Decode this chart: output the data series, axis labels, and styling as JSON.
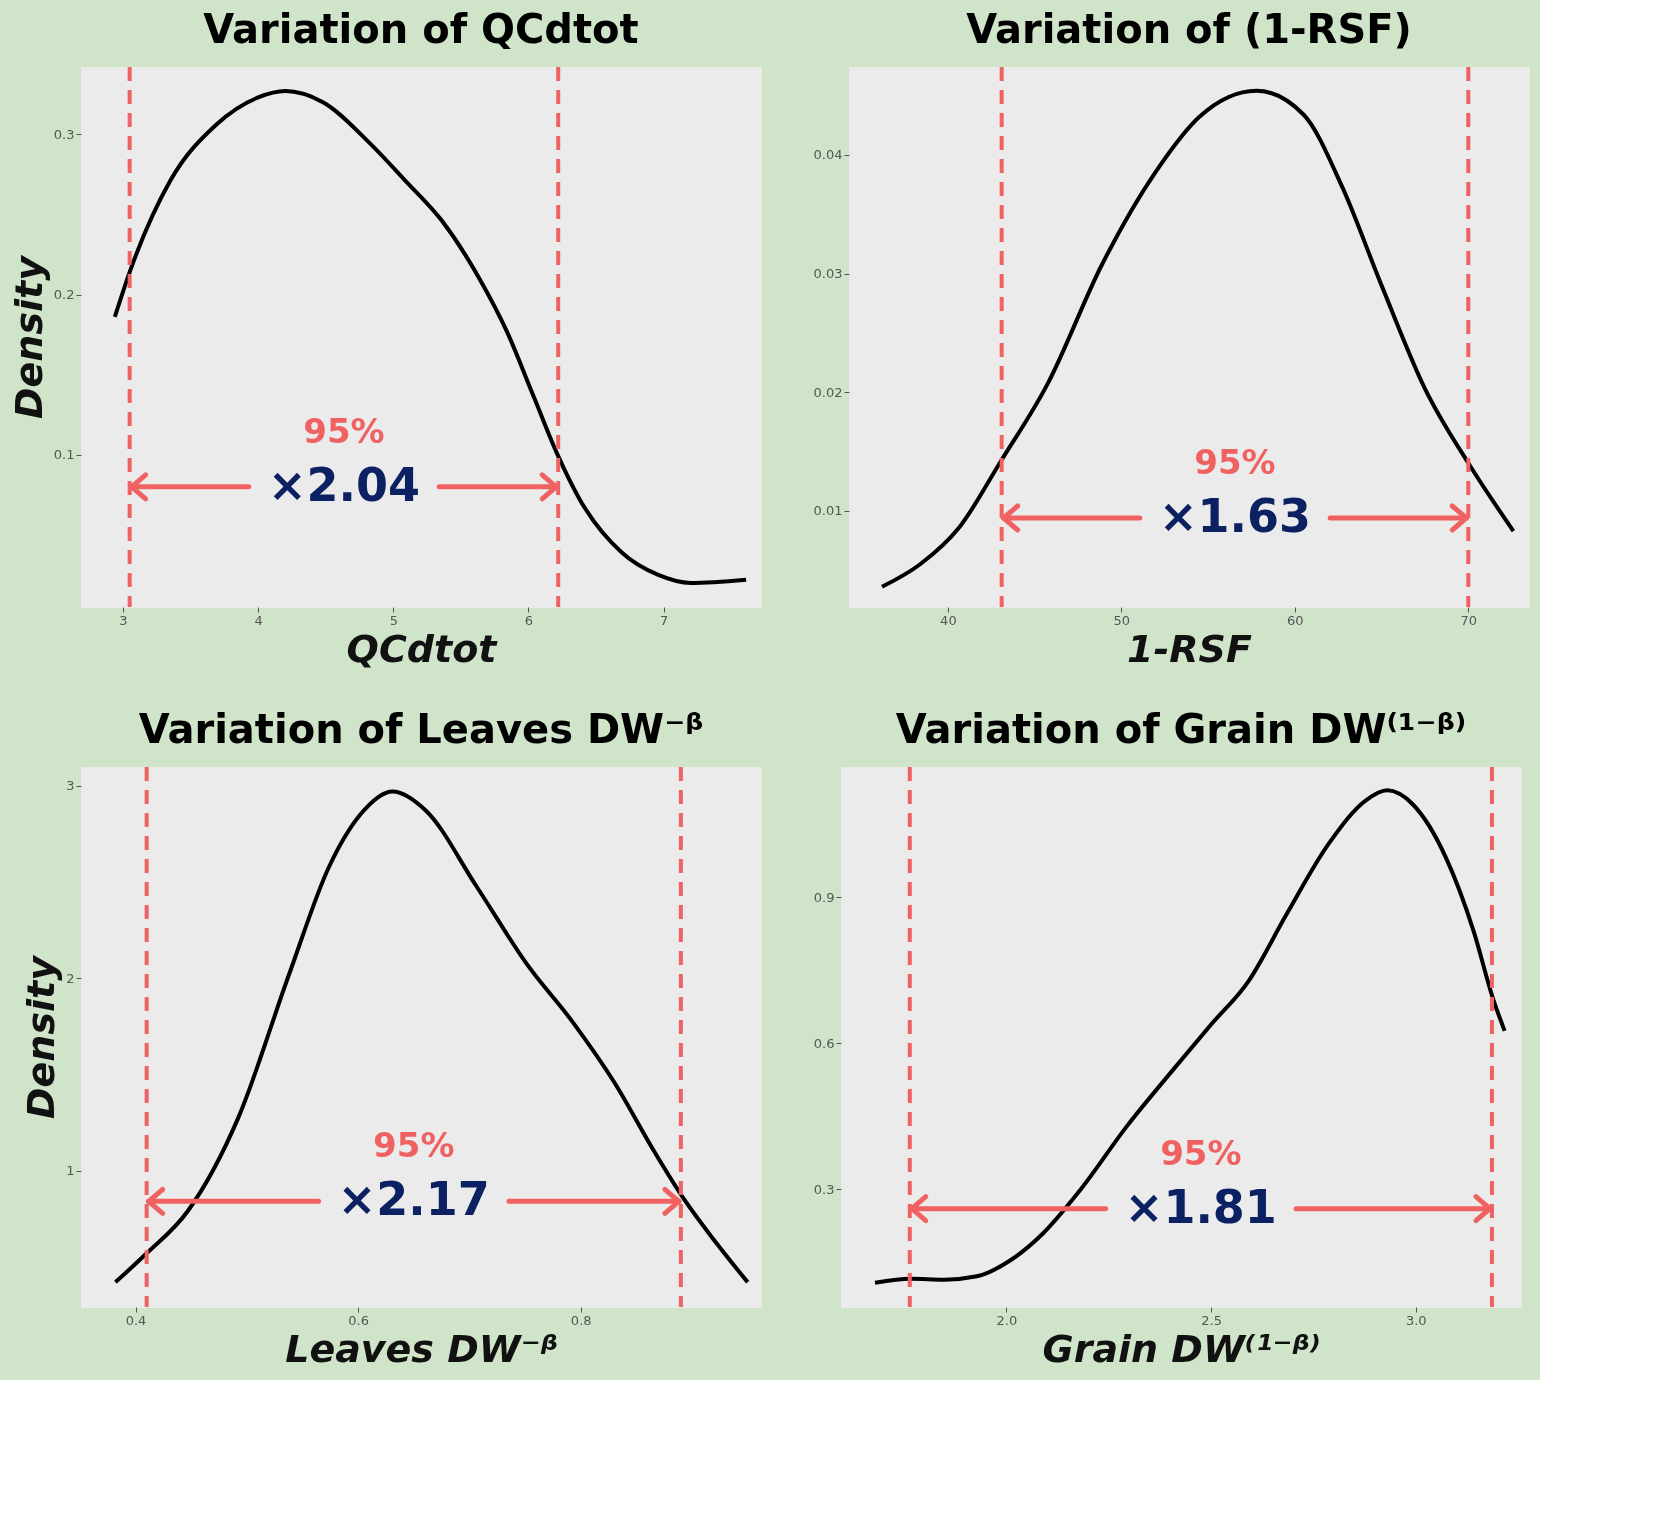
{
  "chart_data": [
    {
      "type": "line",
      "title": "Variation of QCdtot",
      "xlabel": "QCdtot",
      "ylabel": "Density",
      "xlim": [
        2.69,
        7.72
      ],
      "ylim": [
        0.005,
        0.342
      ],
      "xticks": [
        3,
        4,
        5,
        6,
        7
      ],
      "yticks": [
        0.1,
        0.2,
        0.3
      ],
      "grid": false,
      "series": [
        {
          "color": "#000000",
          "x": [
            2.94,
            3.05,
            3.35,
            3.69,
            4.0,
            4.2,
            4.48,
            4.82,
            5.09,
            5.36,
            5.63,
            5.84,
            6.04,
            6.21,
            6.38,
            6.69,
            6.96,
            7.2,
            7.61
          ],
          "values": [
            0.186,
            0.214,
            0.271,
            0.306,
            0.323,
            0.327,
            0.32,
            0.295,
            0.271,
            0.246,
            0.211,
            0.177,
            0.136,
            0.101,
            0.072,
            0.039,
            0.025,
            0.02,
            0.022
          ]
        }
      ],
      "ref_lines": [
        {
          "axis": "x",
          "value": 3.05,
          "color": "#f06262",
          "line_style": "dashed"
        },
        {
          "axis": "x",
          "value": 6.22,
          "color": "#f06262",
          "line_style": "dashed"
        }
      ],
      "annotations": [
        "95%",
        {
          "text": "×2.04",
          "x": 6.22,
          "y": 0.08
        }
      ]
    },
    {
      "type": "line",
      "title": "Variation of (1-RSF)",
      "xlabel": "1-RSF",
      "xlim": [
        34.3,
        73.5
      ],
      "ylim": [
        0.0019,
        0.0474
      ],
      "xticks": [
        40,
        50,
        60,
        70
      ],
      "yticks": [
        0.01,
        0.02,
        0.03,
        0.04
      ],
      "grid": false,
      "series": [
        {
          "color": "#000000",
          "x": [
            36.2,
            38.4,
            40.65,
            43.06,
            45.75,
            48.9,
            52.0,
            54.5,
            57.8,
            60.5,
            62.7,
            65.0,
            67.5,
            70.1,
            72.6
          ],
          "values": [
            0.0036,
            0.0055,
            0.0086,
            0.0142,
            0.0207,
            0.0308,
            0.0386,
            0.0432,
            0.0454,
            0.0434,
            0.0374,
            0.029,
            0.0203,
            0.0138,
            0.0083
          ]
        }
      ],
      "ref_lines": [
        {
          "axis": "x",
          "value": 43.1,
          "color": "#f06262",
          "line_style": "dashed"
        },
        {
          "axis": "x",
          "value": 70.0,
          "color": "#f06262",
          "line_style": "dashed"
        }
      ],
      "annotations": [
        "95%",
        {
          "text": "×1.63",
          "x": 70.0,
          "y": 0.0094
        }
      ]
    },
    {
      "type": "line",
      "title": "Variation of Leaves DW⁻ᵝ",
      "xlabel": "Leaves DW⁻ᵝ",
      "ylabel": "Density",
      "xlim": [
        0.351,
        0.962
      ],
      "ylim": [
        0.291,
        3.097
      ],
      "xticks": [
        0.4,
        0.6,
        0.8
      ],
      "yticks": [
        1,
        2,
        3
      ],
      "grid": false,
      "series": [
        {
          "color": "#000000",
          "x": [
            0.382,
            0.41,
            0.447,
            0.492,
            0.538,
            0.574,
            0.602,
            0.631,
            0.661,
            0.706,
            0.752,
            0.793,
            0.83,
            0.866,
            0.893,
            0.921,
            0.95
          ],
          "values": [
            0.42,
            0.57,
            0.79,
            1.27,
            2.02,
            2.58,
            2.85,
            2.97,
            2.87,
            2.48,
            2.07,
            1.77,
            1.46,
            1.1,
            0.85,
            0.63,
            0.42
          ]
        }
      ],
      "ref_lines": [
        {
          "axis": "x",
          "value": 0.41,
          "color": "#f06262",
          "line_style": "dashed"
        },
        {
          "axis": "x",
          "value": 0.89,
          "color": "#f06262",
          "line_style": "dashed"
        }
      ],
      "annotations": [
        "95%",
        {
          "text": "×2.17",
          "x": 0.89,
          "y": 0.84
        }
      ]
    },
    {
      "type": "line",
      "title": "Variation of Grain DW⁽¹⁻ᵝ⁾",
      "xlabel": "Grain DW⁽¹⁻ᵝ⁾",
      "xlim": [
        1.596,
        3.257
      ],
      "ylim": [
        0.058,
        1.167
      ],
      "xticks": [
        {
          "value": 2,
          "label": "2.0"
        },
        2.5,
        {
          "value": 3,
          "label": "3.0"
        }
      ],
      "yticks": [
        0.3,
        0.6,
        0.9
      ],
      "grid": false,
      "series": [
        {
          "color": "#000000",
          "x": [
            1.679,
            1.767,
            1.848,
            1.928,
            2.008,
            2.088,
            2.18,
            2.294,
            2.409,
            2.5,
            2.592,
            2.684,
            2.787,
            2.879,
            2.93,
            2.993,
            3.073,
            3.142,
            3.188,
            3.217
          ],
          "values": [
            0.108,
            0.116,
            0.114,
            0.121,
            0.153,
            0.208,
            0.298,
            0.429,
            0.547,
            0.638,
            0.728,
            0.864,
            1.009,
            1.099,
            1.119,
            1.09,
            0.982,
            0.828,
            0.693,
            0.625
          ]
        }
      ],
      "ref_lines": [
        {
          "axis": "x",
          "value": 1.764,
          "color": "#f06262",
          "line_style": "dashed"
        },
        {
          "axis": "x",
          "value": 3.186,
          "color": "#f06262",
          "line_style": "dashed"
        }
      ],
      "annotations": [
        "95%",
        {
          "text": "×1.81",
          "x": 3.186,
          "y": 0.26
        }
      ]
    }
  ]
}
